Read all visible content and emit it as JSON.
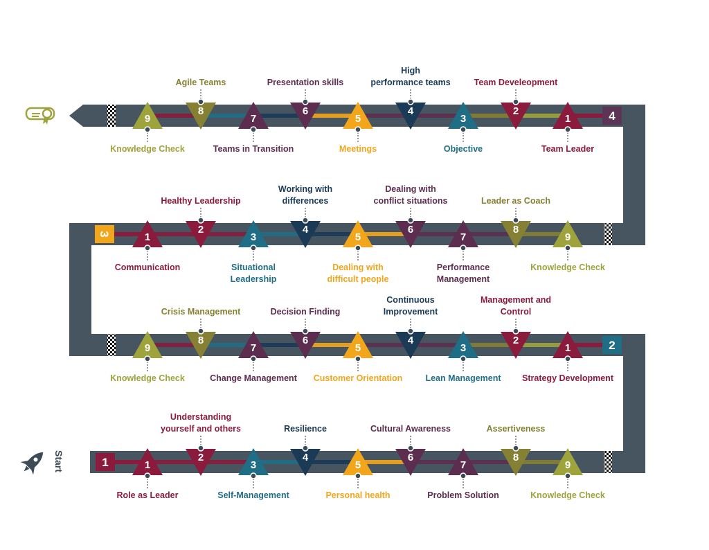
{
  "start_label": "Start",
  "colors": {
    "road": "#475560",
    "olive": "#9ea33c",
    "olive_dark": "#858033",
    "maroon": "#8b1b3c",
    "plum": "#5c2d4f",
    "teal": "#1f6e86",
    "navy": "#1a3a56",
    "orange": "#f2a61c",
    "plum_badge": "#5c3556"
  },
  "icons": {
    "start": "rocket-icon",
    "finish": "certificate-icon"
  },
  "rows": [
    {
      "badge": "1",
      "badge_color": "#8b1b3c",
      "items": [
        {
          "n": "1",
          "label": "Role as Leader",
          "color": "#8b1b3c",
          "dir": "up",
          "pos": "below"
        },
        {
          "n": "2",
          "label": "Understanding yourself and others",
          "color": "#8b1b3c",
          "dir": "down",
          "pos": "above"
        },
        {
          "n": "3",
          "label": "Self-Management",
          "color": "#1f6e86",
          "dir": "up",
          "pos": "below"
        },
        {
          "n": "4",
          "label": "Resilience",
          "color": "#1a3a56",
          "dir": "down",
          "pos": "above"
        },
        {
          "n": "5",
          "label": "Personal health",
          "color": "#f2a61c",
          "dir": "up",
          "pos": "below"
        },
        {
          "n": "6",
          "label": "Cultural Awareness",
          "color": "#5c2d4f",
          "dir": "down",
          "pos": "above"
        },
        {
          "n": "7",
          "label": "Problem Solution",
          "color": "#5c2d4f",
          "dir": "up",
          "pos": "below"
        },
        {
          "n": "8",
          "label": "Assertiveness",
          "color": "#858033",
          "dir": "down",
          "pos": "above"
        },
        {
          "n": "9",
          "label": "Knowledge Check",
          "color": "#9ea33c",
          "dir": "up",
          "pos": "below"
        }
      ]
    },
    {
      "badge": "2",
      "badge_color": "#1f6e86",
      "items": [
        {
          "n": "1",
          "label": "Strategy Development",
          "color": "#8b1b3c",
          "dir": "up",
          "pos": "below"
        },
        {
          "n": "2",
          "label": "Management and Control",
          "color": "#8b1b3c",
          "dir": "down",
          "pos": "above"
        },
        {
          "n": "3",
          "label": "Lean Management",
          "color": "#1f6e86",
          "dir": "up",
          "pos": "below"
        },
        {
          "n": "4",
          "label": "Continuous Improvement",
          "color": "#1a3a56",
          "dir": "down",
          "pos": "above"
        },
        {
          "n": "5",
          "label": "Customer Orientation",
          "color": "#f2a61c",
          "dir": "up",
          "pos": "below"
        },
        {
          "n": "6",
          "label": "Decision Finding",
          "color": "#5c2d4f",
          "dir": "down",
          "pos": "above"
        },
        {
          "n": "7",
          "label": "Change Management",
          "color": "#5c2d4f",
          "dir": "up",
          "pos": "below"
        },
        {
          "n": "8",
          "label": "Crisis Management",
          "color": "#858033",
          "dir": "down",
          "pos": "above"
        },
        {
          "n": "9",
          "label": "Knowledge Check",
          "color": "#9ea33c",
          "dir": "up",
          "pos": "below"
        }
      ]
    },
    {
      "badge": "3",
      "badge_color": "#f2a61c",
      "items": [
        {
          "n": "1",
          "label": "Communication",
          "color": "#8b1b3c",
          "dir": "up",
          "pos": "below"
        },
        {
          "n": "2",
          "label": "Healthy Leadership",
          "color": "#8b1b3c",
          "dir": "down",
          "pos": "above"
        },
        {
          "n": "3",
          "label": "Situational Leadership",
          "color": "#1f6e86",
          "dir": "up",
          "pos": "below"
        },
        {
          "n": "4",
          "label": "Working with differences",
          "color": "#1a3a56",
          "dir": "down",
          "pos": "above"
        },
        {
          "n": "5",
          "label": "Dealing with difficult people",
          "color": "#f2a61c",
          "dir": "up",
          "pos": "below"
        },
        {
          "n": "6",
          "label": "Dealing with conflict situations",
          "color": "#5c2d4f",
          "dir": "down",
          "pos": "above"
        },
        {
          "n": "7",
          "label": "Performance Management",
          "color": "#5c2d4f",
          "dir": "up",
          "pos": "below"
        },
        {
          "n": "8",
          "label": "Leader as Coach",
          "color": "#858033",
          "dir": "down",
          "pos": "above"
        },
        {
          "n": "9",
          "label": "Knowledge Check",
          "color": "#9ea33c",
          "dir": "up",
          "pos": "below"
        }
      ]
    },
    {
      "badge": "4",
      "badge_color": "#5c3556",
      "items": [
        {
          "n": "1",
          "label": "Team Leader",
          "color": "#8b1b3c",
          "dir": "up",
          "pos": "below"
        },
        {
          "n": "2",
          "label": "Team Develeopment",
          "color": "#8b1b3c",
          "dir": "down",
          "pos": "above"
        },
        {
          "n": "3",
          "label": "Objective",
          "color": "#1f6e86",
          "dir": "up",
          "pos": "below"
        },
        {
          "n": "4",
          "label": "High performance teams",
          "color": "#1a3a56",
          "dir": "down",
          "pos": "above"
        },
        {
          "n": "5",
          "label": "Meetings",
          "color": "#f2a61c",
          "dir": "up",
          "pos": "below"
        },
        {
          "n": "6",
          "label": "Presentation skills",
          "color": "#5c2d4f",
          "dir": "down",
          "pos": "above"
        },
        {
          "n": "7",
          "label": "Teams in Transition",
          "color": "#5c2d4f",
          "dir": "up",
          "pos": "below"
        },
        {
          "n": "8",
          "label": "Agile Teams",
          "color": "#858033",
          "dir": "down",
          "pos": "above"
        },
        {
          "n": "9",
          "label": "Knowledge Check",
          "color": "#9ea33c",
          "dir": "up",
          "pos": "below"
        }
      ]
    }
  ]
}
